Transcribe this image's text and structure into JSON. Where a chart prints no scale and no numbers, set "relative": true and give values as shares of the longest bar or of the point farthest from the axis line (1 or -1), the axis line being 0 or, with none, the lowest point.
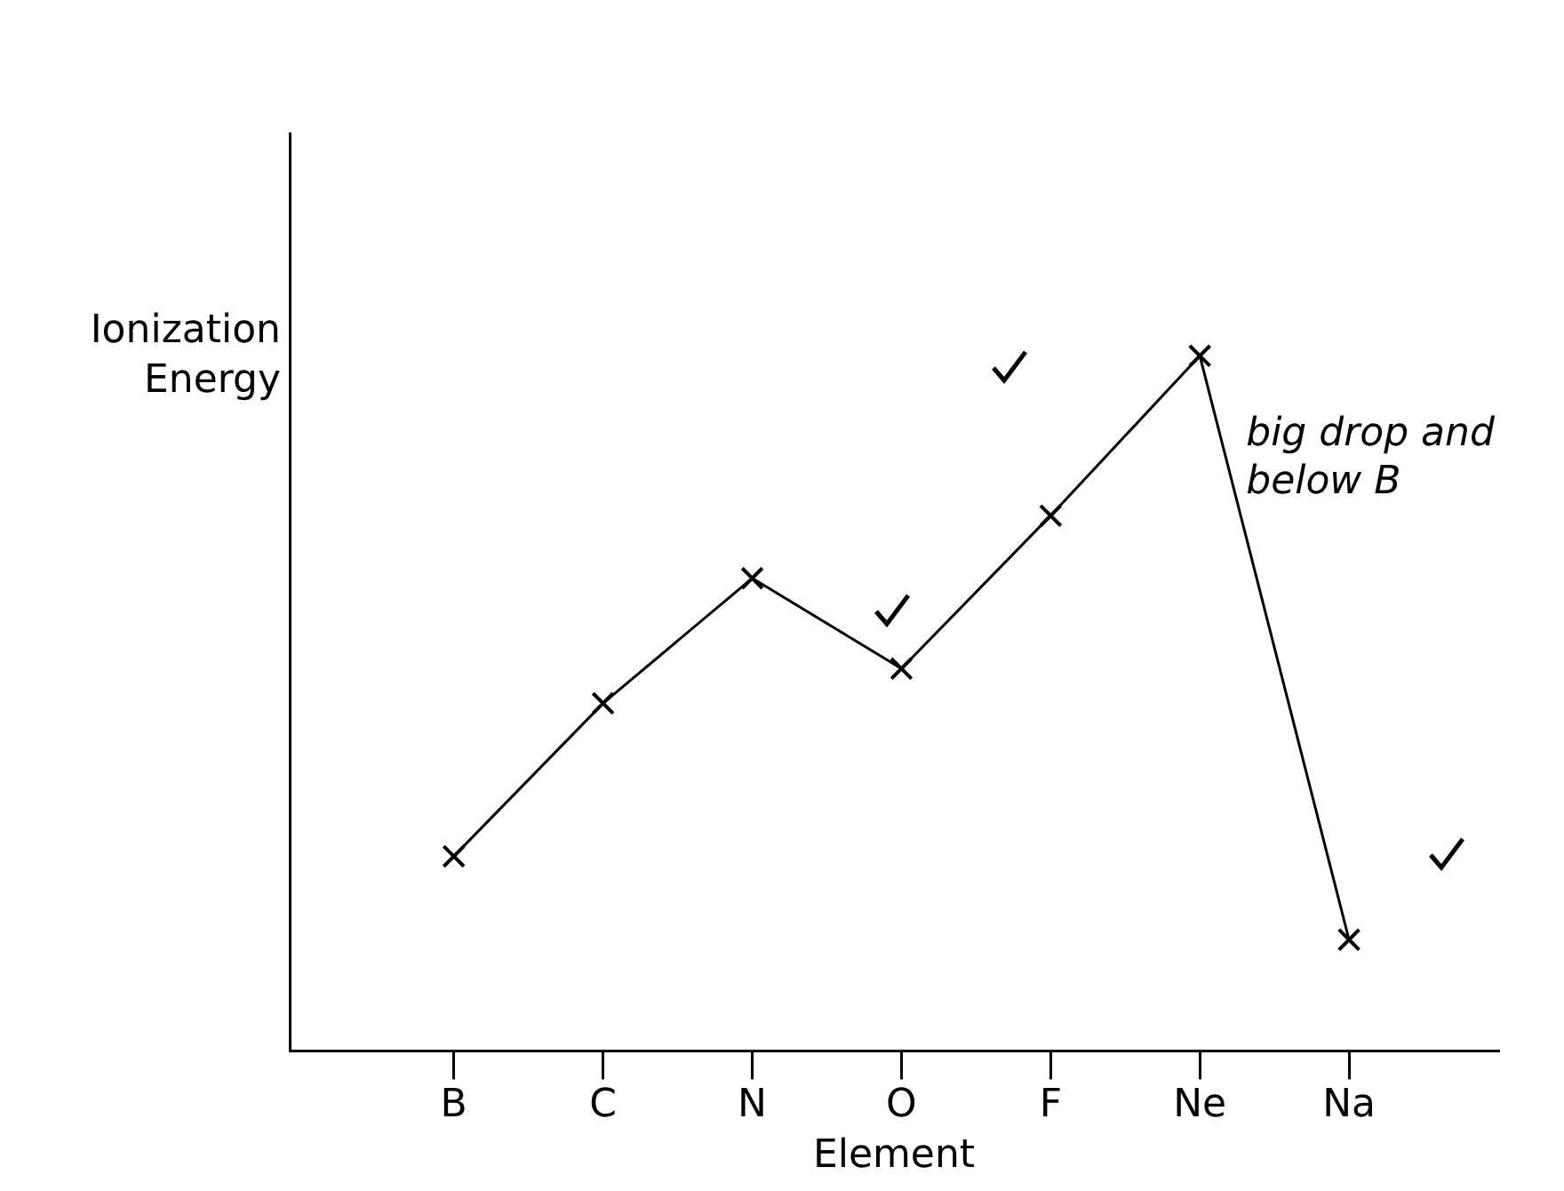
{
  "chart_data": {
    "type": "line",
    "relative": true,
    "xlabel": "Element",
    "ylabel": "Ionization\nEnergy",
    "categories": [
      "B",
      "C",
      "N",
      "O",
      "F",
      "Ne",
      "Na"
    ],
    "series": [
      {
        "color": "#000000",
        "values": [
          0.28,
          0.5,
          0.68,
          0.55,
          0.77,
          1,
          0.16
        ]
      }
    ],
    "annotations": [
      "big drop and\nbelow B"
    ],
    "marker": "cross",
    "line_style": "solid",
    "grid": false,
    "legend": false
  }
}
